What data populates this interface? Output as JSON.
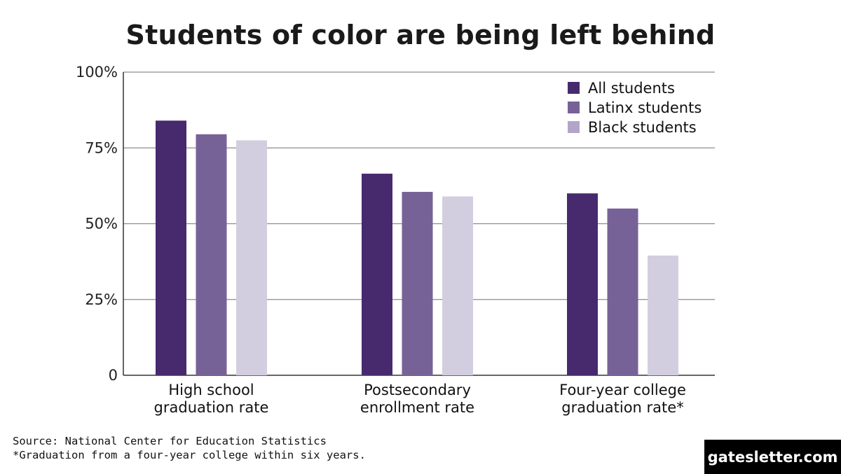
{
  "title": "Students of color are being left behind",
  "source_note": "Source: National Center for Education Statistics",
  "footnote": "*Graduation from a four-year college within six years.",
  "brand": "gatesletter.com",
  "chart_data": {
    "type": "bar",
    "title": "Students of color are being left behind",
    "categories": [
      [
        "High school",
        "graduation rate"
      ],
      [
        "Postsecondary",
        "enrollment rate"
      ],
      [
        "Four-year college",
        "graduation rate*"
      ]
    ],
    "series": [
      {
        "name": "All students",
        "color": "#472a6e",
        "values": [
          84,
          66.5,
          60
        ]
      },
      {
        "name": "Latinx students",
        "color": "#776297",
        "values": [
          79.5,
          60.5,
          55
        ]
      },
      {
        "name": "Black students",
        "color": "#d3cedf",
        "values": [
          77.5,
          59,
          39.5
        ]
      }
    ],
    "legend_swatch_colors": [
      "#472a6e",
      "#776297",
      "#b3a5c9"
    ],
    "yticks": [
      {
        "value": 0,
        "label": "0"
      },
      {
        "value": 25,
        "label": "25%"
      },
      {
        "value": 50,
        "label": "50%"
      },
      {
        "value": 75,
        "label": "75%"
      },
      {
        "value": 100,
        "label": "100%"
      }
    ],
    "ylim": [
      0,
      100
    ],
    "xlabel": "",
    "ylabel": "",
    "grid": true,
    "legend_position": "top-right"
  }
}
